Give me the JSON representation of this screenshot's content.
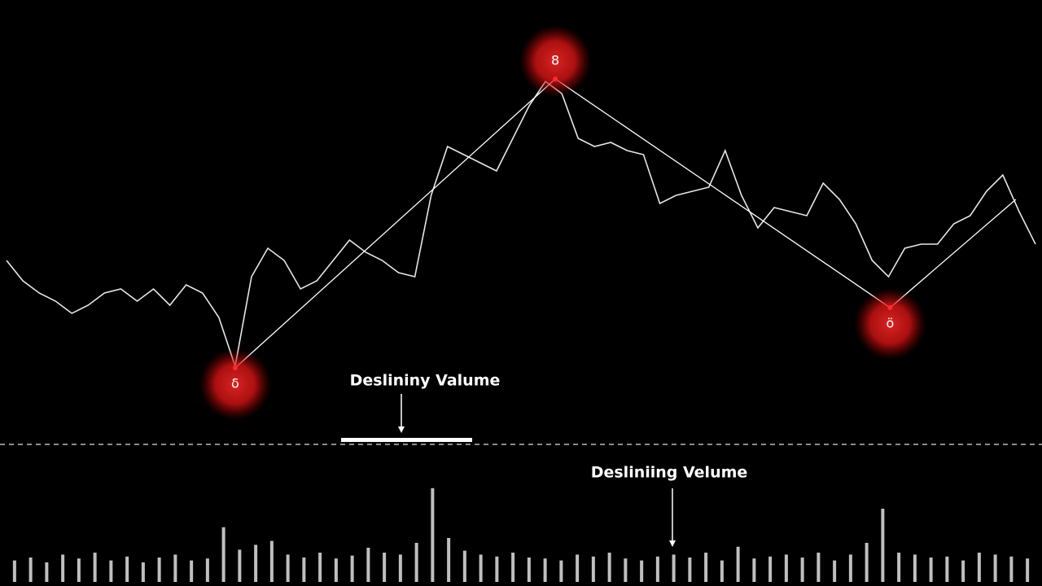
{
  "chart_data": [
    {
      "type": "line",
      "x": [
        0,
        1,
        2,
        3,
        4,
        5,
        6,
        7,
        8,
        9,
        10,
        11,
        12,
        13,
        14,
        15,
        16,
        17,
        18,
        19,
        20,
        21,
        22,
        23,
        24,
        25,
        26,
        27,
        28,
        29,
        30,
        31,
        32,
        33,
        34,
        35,
        36,
        37,
        38,
        39,
        40,
        41,
        42,
        43,
        44,
        45,
        46,
        47,
        48,
        49,
        50,
        51,
        52,
        53,
        54,
        55,
        56,
        57,
        58,
        59,
        60,
        61,
        62,
        63
      ],
      "xlim": [
        0,
        63
      ],
      "values": [
        44,
        39,
        36,
        34,
        31,
        33,
        36,
        37,
        34,
        37,
        33,
        38,
        36,
        30,
        18,
        40,
        47,
        44,
        37,
        39,
        44,
        49,
        46,
        44,
        41,
        40,
        60,
        72,
        70,
        68,
        66,
        74,
        82,
        88,
        85,
        74,
        72,
        73,
        71,
        70,
        58,
        60,
        61,
        62,
        71,
        60,
        52,
        57,
        56,
        55,
        63,
        59,
        53,
        44,
        40,
        47,
        48,
        48,
        53,
        55,
        61,
        65,
        56,
        48
      ],
      "color": "#e6e6e6",
      "ylim": [
        0,
        100
      ],
      "trend": {
        "x": [
          14,
          33.6,
          54.1,
          61.8
        ],
        "values": [
          17.6,
          88.6,
          32.4,
          59
        ],
        "color": "#ffffff"
      },
      "pivots": [
        {
          "index": 0,
          "label": "δ"
        },
        {
          "index": 1,
          "label": "8"
        },
        {
          "index": 2,
          "label": "ö"
        }
      ],
      "pivot_color": "#ff2a2a",
      "annotation": "Deslininy Valume"
    },
    {
      "type": "bar",
      "values": [
        22,
        25,
        20,
        28,
        24,
        30,
        22,
        26,
        20,
        25,
        28,
        22,
        24,
        56,
        33,
        38,
        42,
        28,
        25,
        30,
        24,
        27,
        35,
        30,
        28,
        40,
        96,
        45,
        32,
        28,
        26,
        30,
        25,
        24,
        22,
        28,
        26,
        30,
        24,
        22,
        26,
        28,
        25,
        30,
        22,
        36,
        24,
        26,
        28,
        25,
        30,
        22,
        28,
        40,
        75,
        30,
        28,
        25,
        26,
        22,
        30,
        28,
        26,
        24
      ],
      "color": "#bfbfbf",
      "ylim": [
        0,
        100
      ],
      "annotation": "Desliniing Velume"
    }
  ]
}
